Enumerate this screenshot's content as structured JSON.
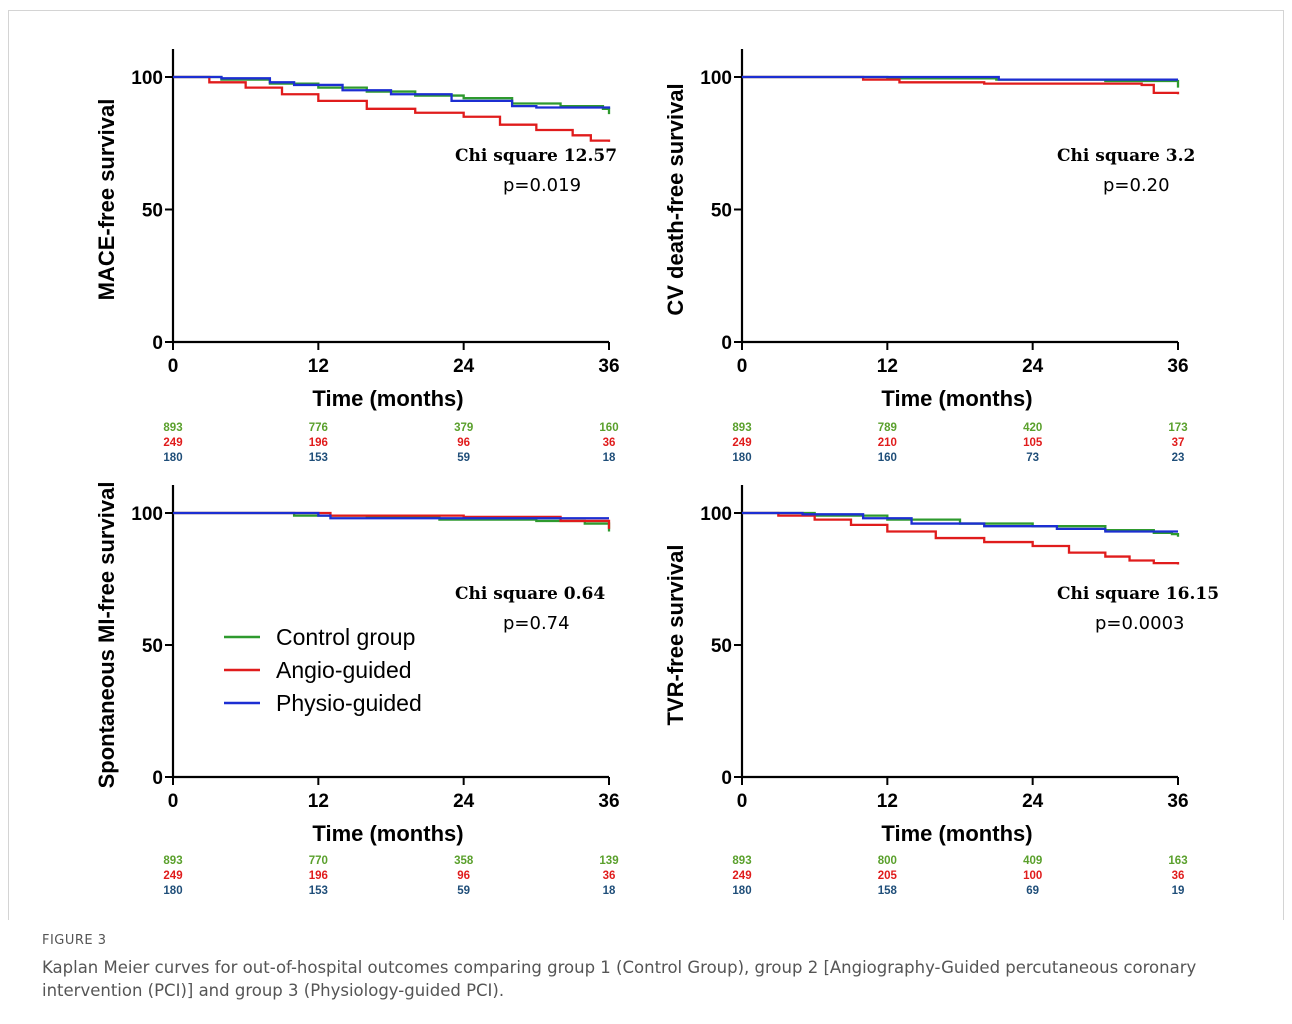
{
  "figure": {
    "label": "FIGURE 3",
    "caption": "Kaplan Meier curves for out-of-hospital outcomes comparing group 1 (Control Group), group 2 [Angiography-Guided percutaneous coronary intervention (PCI)] and group 3 (Physiology-guided PCI)."
  },
  "colors": {
    "control": "#2e9a2e",
    "angio": "#e01c1c",
    "physio": "#1c2ed2",
    "risk_control": "#5aa02c",
    "risk_angio": "#e01c1c",
    "risk_physio": "#1f4e79"
  },
  "legend": [
    {
      "name": "Control group",
      "color_key": "control"
    },
    {
      "name": "Angio-guided",
      "color_key": "angio"
    },
    {
      "name": "Physio-guided",
      "color_key": "physio"
    }
  ],
  "chart_data": [
    {
      "type": "line",
      "ylabel": "MACE-free survival",
      "xlabel": "Time (months)",
      "xlim": [
        0,
        36
      ],
      "ylim": [
        0,
        100
      ],
      "xticks": [
        "0",
        "12",
        "24",
        "36"
      ],
      "yticks": [
        "0",
        "50",
        "100"
      ],
      "annotation": {
        "stat": "Chi square 12.57",
        "p": "p=0.019"
      },
      "series": [
        {
          "name": "Control group",
          "color_key": "control",
          "points": [
            [
              0,
              100
            ],
            [
              4,
              99
            ],
            [
              8,
              97.5
            ],
            [
              12,
              96
            ],
            [
              16,
              94.5
            ],
            [
              20,
              93
            ],
            [
              24,
              92
            ],
            [
              28,
              90
            ],
            [
              32,
              89
            ],
            [
              35.5,
              88
            ],
            [
              36,
              86
            ]
          ]
        },
        {
          "name": "Angio-guided",
          "color_key": "angio",
          "points": [
            [
              0,
              100
            ],
            [
              3,
              98
            ],
            [
              6,
              96
            ],
            [
              9,
              93.5
            ],
            [
              12,
              91
            ],
            [
              16,
              88
            ],
            [
              20,
              86.5
            ],
            [
              24,
              85
            ],
            [
              27,
              82
            ],
            [
              30,
              80
            ],
            [
              33,
              78
            ],
            [
              34.5,
              76
            ],
            [
              36,
              75.5
            ]
          ]
        },
        {
          "name": "Physio-guided",
          "color_key": "physio",
          "points": [
            [
              0,
              100
            ],
            [
              4,
              99.5
            ],
            [
              8,
              98
            ],
            [
              10,
              97
            ],
            [
              14,
              95
            ],
            [
              18,
              93.5
            ],
            [
              23,
              91
            ],
            [
              28,
              89
            ],
            [
              30,
              88.5
            ],
            [
              36,
              88
            ]
          ]
        }
      ],
      "risk_table": {
        "x": [
          0,
          12,
          24,
          36
        ],
        "control": [
          "893",
          "776",
          "379",
          "160"
        ],
        "angio": [
          "249",
          "196",
          "96",
          "36"
        ],
        "physio": [
          "180",
          "153",
          "59",
          "18"
        ]
      }
    },
    {
      "type": "line",
      "ylabel": "CV death-free survival",
      "xlabel": "Time (months)",
      "xlim": [
        0,
        36
      ],
      "ylim": [
        0,
        100
      ],
      "xticks": [
        "0",
        "12",
        "24",
        "36"
      ],
      "yticks": [
        "0",
        "50",
        "100"
      ],
      "annotation": {
        "stat": "Chi square 3.2",
        "p": "p=0.20"
      },
      "series": [
        {
          "name": "Control group",
          "color_key": "control",
          "points": [
            [
              0,
              100
            ],
            [
              12,
              99.5
            ],
            [
              21,
              99
            ],
            [
              30,
              98.5
            ],
            [
              35.8,
              98.5
            ],
            [
              36,
              96
            ]
          ]
        },
        {
          "name": "Angio-guided",
          "color_key": "angio",
          "points": [
            [
              0,
              100
            ],
            [
              10,
              99
            ],
            [
              13,
              98
            ],
            [
              20,
              97.5
            ],
            [
              30,
              97.5
            ],
            [
              33,
              97
            ],
            [
              34,
              94
            ],
            [
              36,
              93.5
            ]
          ]
        },
        {
          "name": "Physio-guided",
          "color_key": "physio",
          "points": [
            [
              0,
              100
            ],
            [
              21,
              100
            ],
            [
              21.2,
              99
            ],
            [
              36,
              99
            ]
          ]
        }
      ],
      "risk_table": {
        "x": [
          0,
          12,
          24,
          36
        ],
        "control": [
          "893",
          "789",
          "420",
          "173"
        ],
        "angio": [
          "249",
          "210",
          "105",
          "37"
        ],
        "physio": [
          "180",
          "160",
          "73",
          "23"
        ]
      }
    },
    {
      "type": "line",
      "ylabel": "Spontaneous MI-free survival",
      "xlabel": "Time (months)",
      "xlim": [
        0,
        36
      ],
      "ylim": [
        0,
        100
      ],
      "xticks": [
        "0",
        "12",
        "24",
        "36"
      ],
      "yticks": [
        "0",
        "50",
        "100"
      ],
      "annotation": {
        "stat": "Chi square 0.64",
        "p": "p=0.74"
      },
      "series": [
        {
          "name": "Control group",
          "color_key": "control",
          "points": [
            [
              0,
              100
            ],
            [
              10,
              99
            ],
            [
              16,
              98.5
            ],
            [
              22,
              97.5
            ],
            [
              30,
              97
            ],
            [
              34,
              96
            ],
            [
              36,
              93
            ]
          ]
        },
        {
          "name": "Angio-guided",
          "color_key": "angio",
          "points": [
            [
              0,
              100
            ],
            [
              13,
              99
            ],
            [
              24,
              98.5
            ],
            [
              31,
              98.5
            ],
            [
              32,
              97
            ],
            [
              35,
              97
            ],
            [
              36,
              94
            ]
          ]
        },
        {
          "name": "Physio-guided",
          "color_key": "physio",
          "points": [
            [
              0,
              100
            ],
            [
              12,
              99
            ],
            [
              13,
              98
            ],
            [
              36,
              98
            ]
          ]
        }
      ],
      "risk_table": {
        "x": [
          0,
          12,
          24,
          36
        ],
        "control": [
          "893",
          "770",
          "358",
          "139"
        ],
        "angio": [
          "249",
          "196",
          "96",
          "36"
        ],
        "physio": [
          "180",
          "153",
          "59",
          "18"
        ]
      }
    },
    {
      "type": "line",
      "ylabel": "TVR-free survival",
      "xlabel": "Time (months)",
      "xlim": [
        0,
        36
      ],
      "ylim": [
        0,
        100
      ],
      "xticks": [
        "0",
        "12",
        "24",
        "36"
      ],
      "yticks": [
        "0",
        "50",
        "100"
      ],
      "annotation": {
        "stat": "Chi square 16.15",
        "p": "p=0.0003"
      },
      "series": [
        {
          "name": "Control group",
          "color_key": "control",
          "points": [
            [
              0,
              100
            ],
            [
              6,
              99
            ],
            [
              12,
              97.5
            ],
            [
              18,
              96
            ],
            [
              24,
              95
            ],
            [
              30,
              93.5
            ],
            [
              34,
              92.5
            ],
            [
              35.5,
              92
            ],
            [
              36,
              91
            ]
          ]
        },
        {
          "name": "Angio-guided",
          "color_key": "angio",
          "points": [
            [
              0,
              100
            ],
            [
              3,
              99
            ],
            [
              6,
              97.5
            ],
            [
              9,
              95.5
            ],
            [
              12,
              93
            ],
            [
              16,
              90.5
            ],
            [
              20,
              89
            ],
            [
              24,
              87.5
            ],
            [
              27,
              85
            ],
            [
              30,
              83.5
            ],
            [
              32,
              82
            ],
            [
              34,
              81
            ],
            [
              36,
              80.5
            ]
          ]
        },
        {
          "name": "Physio-guided",
          "color_key": "physio",
          "points": [
            [
              0,
              100
            ],
            [
              5,
              99.5
            ],
            [
              10,
              98
            ],
            [
              14,
              96
            ],
            [
              20,
              95
            ],
            [
              26,
              94
            ],
            [
              30,
              93
            ],
            [
              36,
              93
            ]
          ]
        }
      ],
      "risk_table": {
        "x": [
          0,
          12,
          24,
          36
        ],
        "control": [
          "893",
          "800",
          "409",
          "163"
        ],
        "angio": [
          "249",
          "205",
          "100",
          "36"
        ],
        "physio": [
          "180",
          "158",
          "69",
          "19"
        ]
      }
    }
  ]
}
